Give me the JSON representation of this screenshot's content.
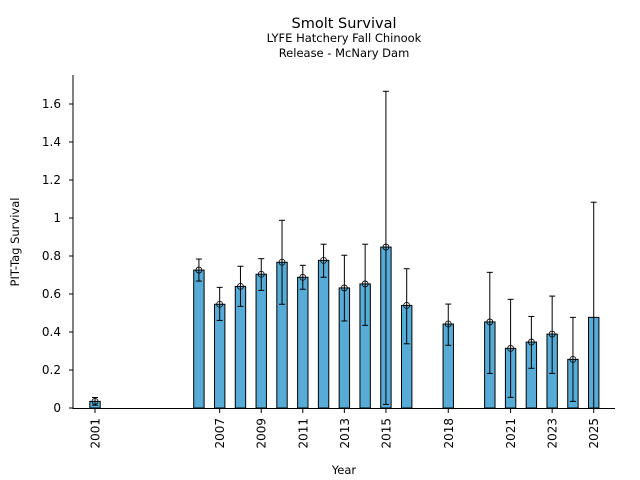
{
  "chart_data": {
    "type": "bar",
    "title": "Smolt Survival",
    "subtitle_lines": [
      "LYFE Hatchery Fall Chinook",
      "Release - McNary Dam"
    ],
    "xlabel": "Year",
    "ylabel": "PIT-Tag Survival",
    "ylim": [
      0,
      1.75
    ],
    "xlim": [
      2000,
      2026
    ],
    "yticks": [
      "0",
      "0.2",
      "0.4",
      "0.6",
      "0.8",
      "1",
      "1.2",
      "1.4",
      "1.6"
    ],
    "xticks": [
      "2001",
      "2007",
      "2009",
      "2011",
      "2013",
      "2015",
      "2018",
      "2021",
      "2023",
      "2025"
    ],
    "grid": false,
    "bar_color": "#56acd7",
    "series": [
      {
        "name": "Survival",
        "points": [
          {
            "year": 2001,
            "value": 0.035,
            "lower": 0.015,
            "upper": 0.055,
            "marker": true
          },
          {
            "year": 2006,
            "value": 0.726,
            "lower": 0.668,
            "upper": 0.784,
            "marker": true
          },
          {
            "year": 2007,
            "value": 0.546,
            "lower": 0.461,
            "upper": 0.635,
            "marker": true
          },
          {
            "year": 2008,
            "value": 0.64,
            "lower": 0.535,
            "upper": 0.746,
            "marker": true
          },
          {
            "year": 2009,
            "value": 0.704,
            "lower": 0.619,
            "upper": 0.786,
            "marker": true
          },
          {
            "year": 2010,
            "value": 0.767,
            "lower": 0.546,
            "upper": 0.988,
            "marker": true
          },
          {
            "year": 2011,
            "value": 0.688,
            "lower": 0.625,
            "upper": 0.751,
            "marker": true
          },
          {
            "year": 2012,
            "value": 0.777,
            "lower": 0.688,
            "upper": 0.862,
            "marker": true
          },
          {
            "year": 2013,
            "value": 0.632,
            "lower": 0.458,
            "upper": 0.804,
            "marker": true
          },
          {
            "year": 2014,
            "value": 0.653,
            "lower": 0.435,
            "upper": 0.862,
            "marker": true
          },
          {
            "year": 2015,
            "value": 0.847,
            "lower": 0.019,
            "upper": 1.667,
            "marker": true
          },
          {
            "year": 2016,
            "value": 0.54,
            "lower": 0.338,
            "upper": 0.733,
            "marker": true
          },
          {
            "year": 2018,
            "value": 0.442,
            "lower": 0.33,
            "upper": 0.547,
            "marker": true
          },
          {
            "year": 2020,
            "value": 0.453,
            "lower": 0.182,
            "upper": 0.714,
            "marker": true
          },
          {
            "year": 2021,
            "value": 0.314,
            "lower": 0.056,
            "upper": 0.572,
            "marker": true
          },
          {
            "year": 2022,
            "value": 0.347,
            "lower": 0.209,
            "upper": 0.482,
            "marker": true
          },
          {
            "year": 2023,
            "value": 0.389,
            "lower": 0.182,
            "upper": 0.589,
            "marker": true
          },
          {
            "year": 2024,
            "value": 0.256,
            "lower": 0.035,
            "upper": 0.477,
            "marker": true
          },
          {
            "year": 2025,
            "value": 0.477,
            "lower": 0.0,
            "upper": 1.083,
            "marker": false
          }
        ]
      }
    ]
  }
}
